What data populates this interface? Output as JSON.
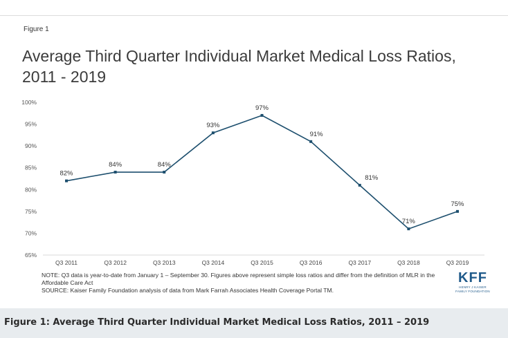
{
  "figure_label": "Figure 1",
  "notes": {
    "note": "NOTE: Q3 data is year-to-date from January 1 – September 30. Figures above represent simple loss ratios and differ from the definition of MLR in the Affordable Care Act",
    "source": "SOURCE: Kaiser Family Foundation analysis of data from Mark Farrah Associates Health Coverage Portal TM."
  },
  "logo": {
    "mark": "KFF",
    "sub1": "HENRY J KAISER",
    "sub2": "FAMILY FOUNDATION"
  },
  "caption": "Figure 1: Average Third Quarter Individual Market Medical Loss Ratios, 2011 – 2019",
  "colors": {
    "line": "#1d4f6e",
    "caption_bg": "#e8ecef",
    "logo": "#1f5a8a"
  },
  "chart_data": {
    "type": "line",
    "title": "Average Third Quarter Individual Market Medical Loss Ratios, 2011 - 2019",
    "categories": [
      "Q3 2011",
      "Q3 2012",
      "Q3 2013",
      "Q3 2014",
      "Q3 2015",
      "Q3 2016",
      "Q3 2017",
      "Q3 2018",
      "Q3 2019"
    ],
    "values": [
      82,
      84,
      84,
      93,
      97,
      91,
      81,
      71,
      75
    ],
    "data_labels": [
      "82%",
      "84%",
      "84%",
      "93%",
      "97%",
      "91%",
      "81%",
      "71%",
      "75%"
    ],
    "yticks": [
      65,
      70,
      75,
      80,
      85,
      90,
      95,
      100
    ],
    "ytick_labels": [
      "65%",
      "70%",
      "75%",
      "80%",
      "85%",
      "90%",
      "95%",
      "100%"
    ],
    "ylim": [
      65,
      100
    ],
    "xlabel": "",
    "ylabel": "",
    "grid": false,
    "legend": "none"
  }
}
